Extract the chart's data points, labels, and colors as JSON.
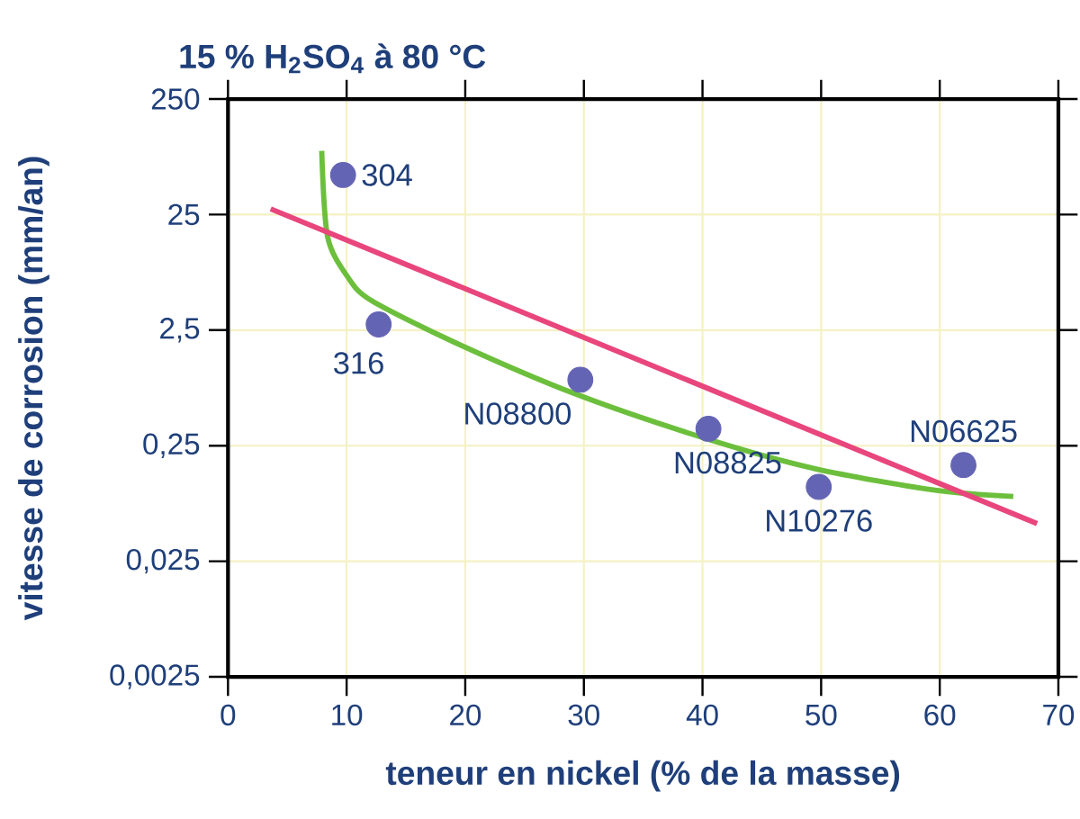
{
  "chart_data": {
    "type": "scatter",
    "title": "15 % H$_{2}$SO$_{4}$ à 80 °C",
    "xlabel": "teneur en nickel (% de la masse)",
    "ylabel": "vitesse de corrosion (mm/an)",
    "log": "y",
    "grid": true,
    "marker": "circle",
    "xlim": [
      0,
      70
    ],
    "xticks": [
      0,
      10,
      20,
      30,
      40,
      50,
      60,
      70
    ],
    "ylim": [
      0.0025,
      250
    ],
    "yticks": [
      {
        "value": 0.0025,
        "label": "0,0025"
      },
      {
        "value": 0.025,
        "label": "0,025"
      },
      {
        "value": 0.25,
        "label": "0,25"
      },
      {
        "value": 2.5,
        "label": "2,5"
      },
      25,
      250
    ],
    "series": [
      {
        "color": "#6464b4",
        "x": [
          9.7,
          12.7,
          29.7,
          40.5,
          49.8,
          62.0
        ],
        "values": [
          55,
          2.8,
          0.93,
          0.35,
          0.11,
          0.17
        ]
      },
      {
        "type": "line",
        "marker": "none",
        "color": "#6cbf3c",
        "x": [
          7.9,
          8.4,
          10.1,
          12.1,
          19.2,
          29.3,
          40.4,
          49.5,
          59.6,
          66.2
        ],
        "values": [
          89,
          16,
          7.2,
          4.5,
          1.94,
          0.7,
          0.286,
          0.158,
          0.103,
          0.091
        ]
      },
      {
        "type": "line",
        "marker": "none",
        "color": "#e8467c",
        "x": [
          3.6,
          68.2
        ],
        "values": [
          28,
          0.053
        ]
      }
    ],
    "annotations": [
      {
        "text": "304",
        "x": 9.7,
        "y": 55
      },
      {
        "text": "316",
        "x": 12.7,
        "y": 2.8
      },
      {
        "text": "N08800",
        "x": 29.7,
        "y": 0.93
      },
      {
        "text": "N08825",
        "x": 40.5,
        "y": 0.35
      },
      {
        "text": "N10276",
        "x": 49.8,
        "y": 0.11
      },
      {
        "text": "N06625",
        "x": 62.0,
        "y": 0.17
      }
    ]
  }
}
